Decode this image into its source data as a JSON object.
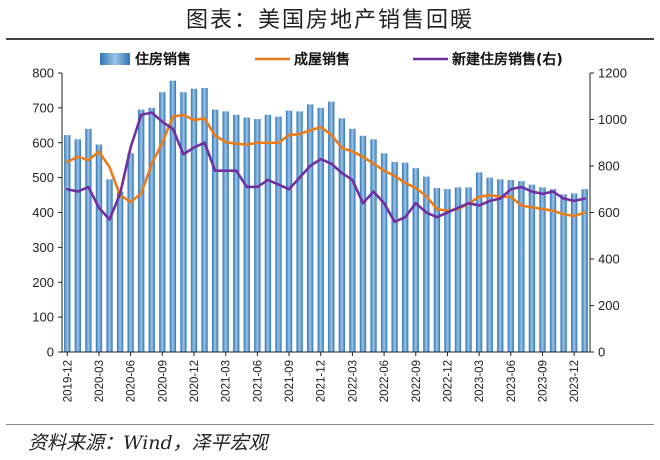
{
  "title": "图表：美国房地产销售回暖",
  "source": "资料来源：Wind，泽平宏观",
  "chart_data": {
    "type": "bar",
    "categories": [
      "2019-12",
      "2020-01",
      "2020-02",
      "2020-03",
      "2020-04",
      "2020-05",
      "2020-06",
      "2020-07",
      "2020-08",
      "2020-09",
      "2020-10",
      "2020-11",
      "2020-12",
      "2021-01",
      "2021-02",
      "2021-03",
      "2021-04",
      "2021-05",
      "2021-06",
      "2021-07",
      "2021-08",
      "2021-09",
      "2021-10",
      "2021-11",
      "2021-12",
      "2022-01",
      "2022-02",
      "2022-03",
      "2022-04",
      "2022-05",
      "2022-06",
      "2022-07",
      "2022-08",
      "2022-09",
      "2022-10",
      "2022-11",
      "2022-12",
      "2023-01",
      "2023-02",
      "2023-03",
      "2023-04",
      "2023-05",
      "2023-06",
      "2023-07",
      "2023-08",
      "2023-09",
      "2023-10",
      "2023-11",
      "2023-12",
      "2024-01"
    ],
    "x_tick_labels": [
      "2019-12",
      "2020-03",
      "2020-06",
      "2020-09",
      "2020-12",
      "2021-03",
      "2021-06",
      "2021-09",
      "2021-12",
      "2022-03",
      "2022-06",
      "2022-09",
      "2022-12",
      "2023-03",
      "2023-06",
      "2023-09",
      "2023-12"
    ],
    "y_left": {
      "min": 0,
      "max": 800,
      "ticks": [
        0,
        100,
        200,
        300,
        400,
        500,
        600,
        700,
        800
      ]
    },
    "y_right": {
      "min": 0,
      "max": 1200,
      "ticks": [
        0,
        200,
        400,
        600,
        800,
        1000,
        1200
      ]
    },
    "grid": false,
    "legend_position": "top",
    "series": [
      {
        "name": "住房销售",
        "kind": "bar",
        "axis": "left",
        "color": "#5b9bd5",
        "values": [
          622,
          610,
          640,
          595,
          495,
          460,
          570,
          695,
          700,
          745,
          778,
          745,
          755,
          757,
          695,
          690,
          680,
          672,
          668,
          680,
          675,
          692,
          690,
          710,
          700,
          718,
          670,
          640,
          620,
          610,
          570,
          545,
          543,
          527,
          503,
          470,
          467,
          472,
          472,
          515,
          500,
          495,
          493,
          490,
          480,
          472,
          467,
          452,
          455,
          467
        ]
      },
      {
        "name": "成屋销售",
        "kind": "line",
        "axis": "left",
        "color": "#e97d1c",
        "values": [
          545,
          560,
          550,
          575,
          530,
          450,
          430,
          455,
          540,
          600,
          675,
          680,
          665,
          670,
          620,
          602,
          597,
          595,
          600,
          600,
          600,
          622,
          625,
          635,
          645,
          623,
          585,
          575,
          560,
          540,
          520,
          505,
          485,
          470,
          447,
          410,
          405,
          410,
          425,
          445,
          450,
          445,
          445,
          420,
          415,
          410,
          405,
          395,
          390,
          400
        ]
      },
      {
        "name": "新建住房销售(右)",
        "kind": "line",
        "axis": "right",
        "color": "#7030a0",
        "values": [
          700,
          690,
          710,
          620,
          570,
          680,
          880,
          1020,
          1030,
          990,
          960,
          850,
          880,
          900,
          780,
          780,
          780,
          710,
          710,
          740,
          720,
          700,
          750,
          800,
          830,
          810,
          770,
          740,
          640,
          690,
          640,
          560,
          580,
          640,
          600,
          580,
          600,
          620,
          640,
          630,
          650,
          660,
          700,
          710,
          690,
          680,
          690,
          660,
          650,
          660
        ]
      }
    ]
  }
}
